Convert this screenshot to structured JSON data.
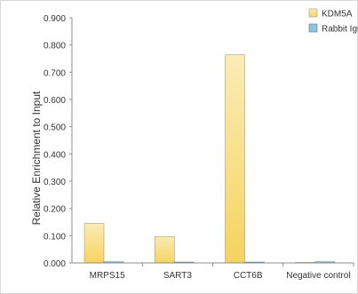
{
  "chart_data": {
    "type": "bar",
    "categories": [
      "MRPS15",
      "SART3",
      "CCT6B",
      "Negative control"
    ],
    "series": [
      {
        "name": "KDM5A",
        "values": [
          0.145,
          0.097,
          0.764,
          0.002
        ]
      },
      {
        "name": "Rabbit IgG",
        "values": [
          0.004,
          0.003,
          0.003,
          0.004
        ]
      }
    ],
    "title": "",
    "xlabel": "",
    "ylabel": "Relative Enrichment to Input",
    "ylim": [
      0,
      0.9
    ],
    "yticks": [
      "0.000",
      "0.100",
      "0.200",
      "0.300",
      "0.400",
      "0.500",
      "0.600",
      "0.700",
      "0.800",
      "0.900"
    ],
    "grid": false,
    "legend_position": "top-right",
    "colors": {
      "KDM5A_top": "#fbecb6",
      "KDM5A_bottom": "#f6d35f",
      "KDM5A_stroke": "#a79c7b",
      "IgG_fill": "#8fc3d8",
      "IgG_stroke": "#4f7f93",
      "axis": "#8c8c8c",
      "frame": "#d9d9d9"
    }
  }
}
